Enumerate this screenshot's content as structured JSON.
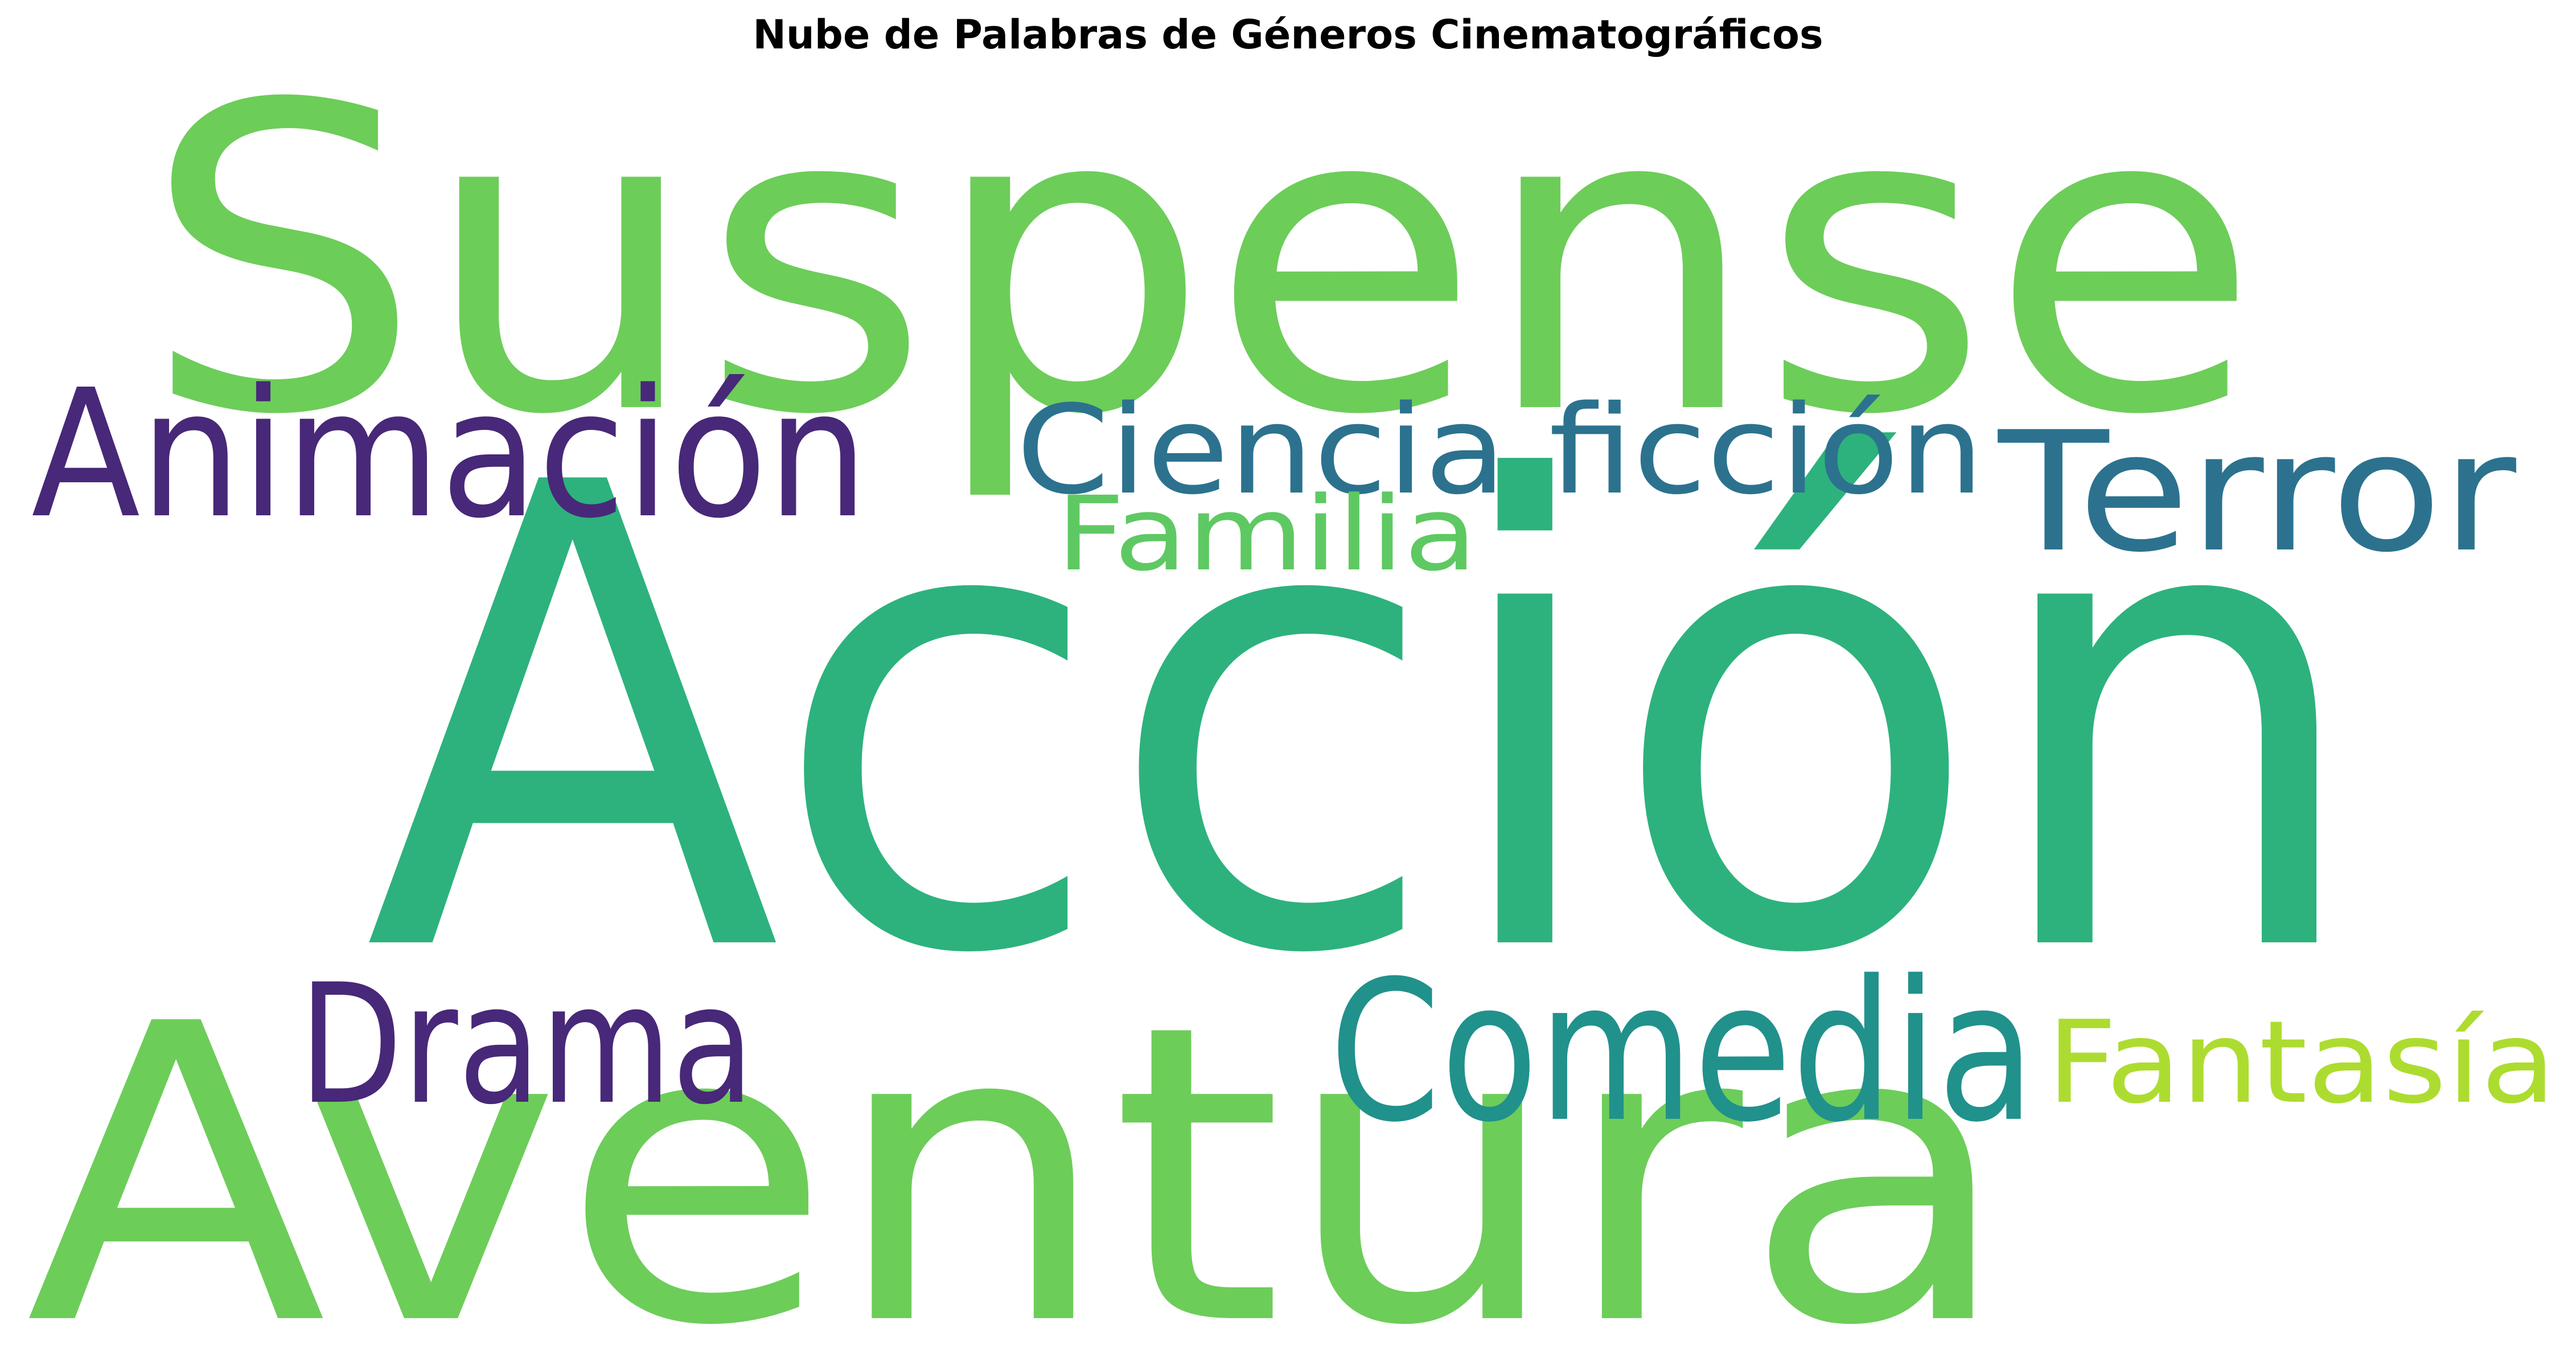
{
  "title": "Nube de Palabras de Géneros Cinematográficos",
  "words": [
    {
      "text": "Suspense",
      "color": "#6dcd59"
    },
    {
      "text": "Acción",
      "color": "#2db27d"
    },
    {
      "text": "Aventura",
      "color": "#6dcd59"
    },
    {
      "text": "Animación",
      "color": "#482878"
    },
    {
      "text": "Ciencia ficción",
      "color": "#2c728e"
    },
    {
      "text": "Terror",
      "color": "#2c728e"
    },
    {
      "text": "Familia",
      "color": "#5ec962"
    },
    {
      "text": "Drama",
      "color": "#482878"
    },
    {
      "text": "Comedia",
      "color": "#21918c"
    },
    {
      "text": "Fantasía",
      "color": "#addc30"
    }
  ]
}
